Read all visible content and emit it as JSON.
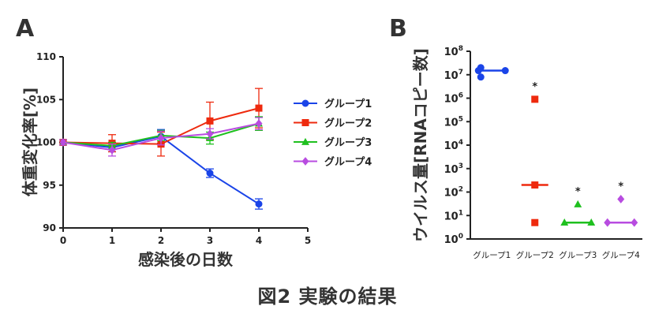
{
  "figure": {
    "caption": "図2  実験の結果"
  },
  "chart_data": [
    {
      "type": "line",
      "panel_label": "A",
      "xlabel": "感染後の日数",
      "ylabel": "体重変化率[%]",
      "xlim": [
        0,
        5
      ],
      "ylim": [
        90,
        110
      ],
      "xticks": [
        0,
        1,
        2,
        3,
        4,
        5
      ],
      "yticks": [
        90,
        95,
        100,
        105,
        110
      ],
      "grid": false,
      "legend_position": "right",
      "x": [
        0,
        1,
        2,
        3,
        4
      ],
      "series": [
        {
          "name": "グループ1",
          "color": "#1a44e8",
          "marker": "circle",
          "values": [
            100.0,
            99.4,
            100.7,
            96.4,
            92.8
          ],
          "errors": [
            0.3,
            0.5,
            0.8,
            0.5,
            0.6
          ]
        },
        {
          "name": "グループ2",
          "color": "#ee2a0e",
          "marker": "square",
          "values": [
            100.0,
            99.9,
            99.8,
            102.5,
            104.0
          ],
          "errors": [
            0.3,
            1.0,
            1.4,
            2.2,
            2.3
          ]
        },
        {
          "name": "グループ3",
          "color": "#1fc01f",
          "marker": "triangle",
          "values": [
            100.0,
            99.6,
            100.8,
            100.5,
            102.2
          ],
          "errors": [
            0.3,
            0.4,
            0.6,
            0.7,
            0.8
          ]
        },
        {
          "name": "グループ4",
          "color": "#b84ce0",
          "marker": "diamond",
          "values": [
            100.0,
            99.1,
            100.5,
            101.0,
            102.2
          ],
          "errors": [
            0.3,
            0.7,
            0.8,
            0.6,
            0.7
          ]
        }
      ]
    },
    {
      "type": "scatter",
      "panel_label": "B",
      "ylabel": "ウイルス量[RNAコピー数]",
      "yscale": "log10",
      "ylim": [
        1,
        100000000
      ],
      "ytick_exponents": [
        0,
        1,
        2,
        3,
        4,
        5,
        6,
        7,
        8
      ],
      "ytick_base": "10",
      "categories": [
        "グループ1",
        "グループ2",
        "グループ3",
        "グループ4"
      ],
      "groups": [
        {
          "name": "グループ1",
          "color": "#1a44e8",
          "marker": "circle",
          "points": [
            20000000,
            15000000,
            15000000,
            8000000
          ],
          "median": 15000000,
          "significance": ""
        },
        {
          "name": "グループ2",
          "color": "#ee2a0e",
          "marker": "square",
          "points": [
            900000,
            200,
            5
          ],
          "median": 200,
          "significance": "*"
        },
        {
          "name": "グループ3",
          "color": "#1fc01f",
          "marker": "triangle",
          "points": [
            30,
            5,
            5
          ],
          "median": 5,
          "significance": "*"
        },
        {
          "name": "グループ4",
          "color": "#b84ce0",
          "marker": "diamond",
          "points": [
            50,
            5,
            5
          ],
          "median": 5,
          "significance": "*"
        }
      ]
    }
  ]
}
